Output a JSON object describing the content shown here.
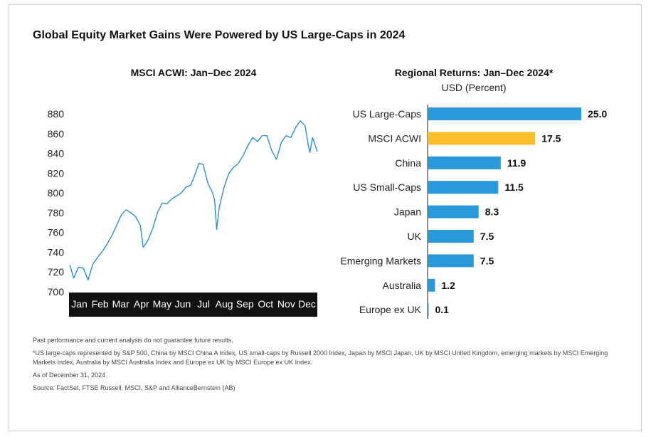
{
  "title": "Global Equity Market Gains Were Powered by US Large-Caps in 2024",
  "chart_data": [
    {
      "type": "line",
      "title": "MSCI ACWI: Jan–Dec 2024",
      "ylim": [
        700,
        880
      ],
      "yticks": [
        700,
        720,
        740,
        760,
        780,
        800,
        820,
        840,
        860,
        880
      ],
      "xticks": [
        "Jan",
        "Feb",
        "Mar",
        "Apr",
        "May",
        "Jun",
        "Jul",
        "Aug",
        "Sep",
        "Oct",
        "Nov",
        "Dec"
      ],
      "color": "#2b8fd6",
      "x": [
        "2024-01-02",
        "2024-01-08",
        "2024-01-15",
        "2024-01-22",
        "2024-01-29",
        "2024-02-05",
        "2024-02-12",
        "2024-02-19",
        "2024-02-26",
        "2024-03-04",
        "2024-03-11",
        "2024-03-18",
        "2024-03-25",
        "2024-04-01",
        "2024-04-08",
        "2024-04-15",
        "2024-04-19",
        "2024-04-26",
        "2024-05-03",
        "2024-05-10",
        "2024-05-17",
        "2024-05-24",
        "2024-05-31",
        "2024-06-07",
        "2024-06-14",
        "2024-06-21",
        "2024-06-28",
        "2024-07-05",
        "2024-07-10",
        "2024-07-16",
        "2024-07-23",
        "2024-07-30",
        "2024-08-02",
        "2024-08-05",
        "2024-08-09",
        "2024-08-16",
        "2024-08-23",
        "2024-08-30",
        "2024-09-06",
        "2024-09-13",
        "2024-09-20",
        "2024-09-27",
        "2024-10-04",
        "2024-10-11",
        "2024-10-18",
        "2024-10-25",
        "2024-11-01",
        "2024-11-08",
        "2024-11-15",
        "2024-11-22",
        "2024-11-29",
        "2024-12-06",
        "2024-12-13",
        "2024-12-18",
        "2024-12-20",
        "2024-12-24",
        "2024-12-31"
      ],
      "values": [
        727,
        714,
        725,
        724,
        712,
        728,
        735,
        741,
        748,
        757,
        767,
        778,
        783,
        780,
        776,
        767,
        745,
        752,
        764,
        780,
        790,
        789,
        794,
        797,
        800,
        806,
        808,
        820,
        830,
        829,
        810,
        800,
        793,
        763,
        786,
        806,
        820,
        826,
        830,
        838,
        848,
        856,
        852,
        858,
        858,
        843,
        834,
        851,
        858,
        856,
        866,
        873,
        868,
        847,
        841,
        856,
        842
      ]
    },
    {
      "type": "bar",
      "orientation": "horizontal",
      "title": "Regional Returns: Jan–Dec 2024*",
      "ylabel": "USD (Percent)",
      "categories": [
        "US Large-Caps",
        "MSCI ACWI",
        "China",
        "US Small-Caps",
        "Japan",
        "UK",
        "Emerging Markets",
        "Australia",
        "Europe ex UK"
      ],
      "values": [
        25.0,
        17.5,
        11.9,
        11.5,
        8.3,
        7.5,
        7.5,
        1.2,
        0.1
      ],
      "value_labels": [
        "25.0",
        "17.5",
        "11.9",
        "11.5",
        "8.3",
        "7.5",
        "7.5",
        "1.2",
        "0.1"
      ],
      "colors": [
        "#2b98d9",
        "#fbbf2b",
        "#2b98d9",
        "#2b98d9",
        "#2b98d9",
        "#2b98d9",
        "#2b98d9",
        "#2b98d9",
        "#2b98d9"
      ],
      "xlim": [
        0,
        25
      ]
    }
  ],
  "notes": [
    "Past performance and current analysis do not guarantee future results.",
    "*US large-caps represented by S&P 500, China by MSCI China A Index, US small-caps by Russell 2000 Index, Japan by MSCI Japan, UK by MSCI United Kingdom, emerging markets by MSCI Emerging Markets Index, Australia by MSCI Australia Index and Europe ex UK by MSCI Europe ex UK Index.",
    "As of December 31, 2024",
    "Source: FactSet, FTSE Russell, MSCI, S&P and AllianceBernstein (AB)"
  ]
}
